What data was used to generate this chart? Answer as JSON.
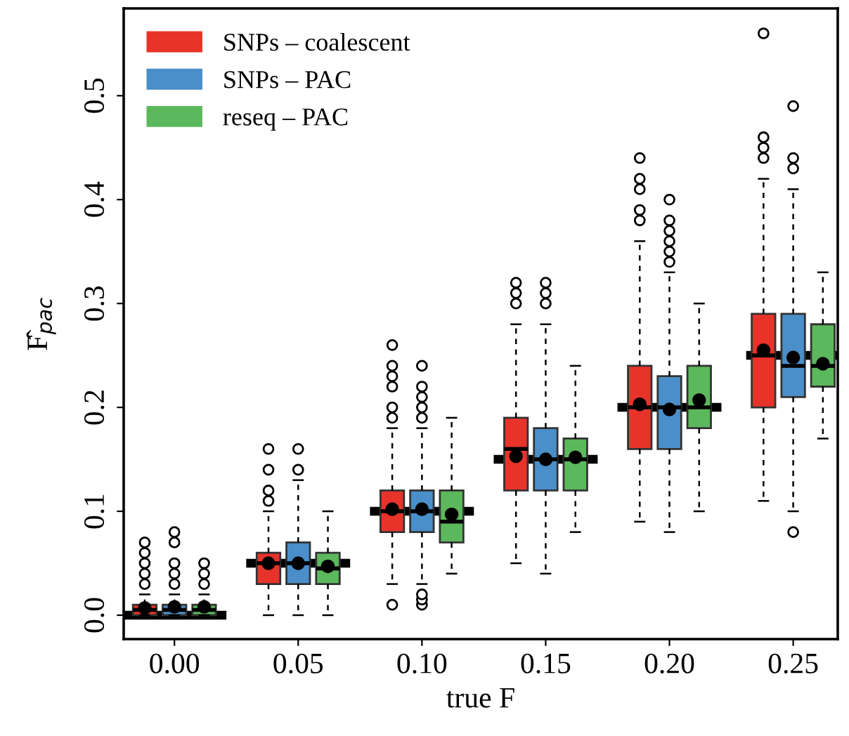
{
  "chart_data": {
    "type": "box",
    "xlabel": "true F",
    "ylabel": "F̂$_{pac}$",
    "x": [
      0,
      0.05,
      0.1,
      0.15,
      0.2,
      0.25
    ],
    "xlim": [
      -0.0205,
      0.268
    ],
    "xticks": [
      {
        "value": 0,
        "label": "0.00"
      },
      {
        "value": 0.05,
        "label": "0.05"
      },
      {
        "value": 0.1,
        "label": "0.10"
      },
      {
        "value": 0.15,
        "label": "0.15"
      },
      {
        "value": 0.2,
        "label": "0.20"
      },
      {
        "value": 0.25,
        "label": "0.25"
      }
    ],
    "ylim": [
      -0.023,
      0.584
    ],
    "yticks": [
      {
        "value": 0,
        "label": "0.0"
      },
      0.1,
      0.2,
      0.3,
      0.4,
      0.5
    ],
    "grid": false,
    "legend": "top left",
    "series": [
      {
        "name": "SNPs – coalescent",
        "color": "#e8332a",
        "boxes": [
          {
            "low": 0,
            "q1": 0,
            "median": 0.005,
            "q3": 0.01,
            "high": 0.02,
            "mean": 0.007,
            "outliers": [
              0.03,
              0.04,
              0.05,
              0.06,
              0.07
            ]
          },
          {
            "low": 0,
            "q1": 0.03,
            "median": 0.05,
            "q3": 0.06,
            "high": 0.1,
            "mean": 0.05,
            "outliers": [
              0.11,
              0.12,
              0.14,
              0.16
            ]
          },
          {
            "low": 0.03,
            "q1": 0.08,
            "median": 0.1,
            "q3": 0.12,
            "high": 0.18,
            "mean": 0.102,
            "outliers": [
              0.01,
              0.19,
              0.2,
              0.22,
              0.23,
              0.24,
              0.26
            ]
          },
          {
            "low": 0.05,
            "q1": 0.12,
            "median": 0.16,
            "q3": 0.19,
            "high": 0.28,
            "mean": 0.153,
            "outliers": [
              0.3,
              0.31,
              0.32
            ]
          },
          {
            "low": 0.09,
            "q1": 0.16,
            "median": 0.2,
            "q3": 0.24,
            "high": 0.36,
            "mean": 0.203,
            "outliers": [
              0.38,
              0.39,
              0.41,
              0.42,
              0.44
            ]
          },
          {
            "low": 0.11,
            "q1": 0.2,
            "median": 0.25,
            "q3": 0.29,
            "high": 0.42,
            "mean": 0.255,
            "outliers": [
              0.44,
              0.45,
              0.46,
              0.56
            ]
          }
        ]
      },
      {
        "name": "SNPs – PAC",
        "color": "#4a8fc9",
        "boxes": [
          {
            "low": 0,
            "q1": 0,
            "median": 0.005,
            "q3": 0.01,
            "high": 0.02,
            "mean": 0.008,
            "outliers": [
              0.03,
              0.04,
              0.05,
              0.07,
              0.08
            ]
          },
          {
            "low": 0,
            "q1": 0.03,
            "median": 0.05,
            "q3": 0.07,
            "high": 0.13,
            "mean": 0.05,
            "outliers": [
              0.14,
              0.16
            ]
          },
          {
            "low": 0.03,
            "q1": 0.08,
            "median": 0.1,
            "q3": 0.12,
            "high": 0.18,
            "mean": 0.102,
            "outliers": [
              0.01,
              0.015,
              0.02,
              0.19,
              0.2,
              0.21,
              0.22,
              0.24
            ]
          },
          {
            "low": 0.04,
            "q1": 0.12,
            "median": 0.15,
            "q3": 0.18,
            "high": 0.28,
            "mean": 0.15,
            "outliers": [
              0.3,
              0.31,
              0.32
            ]
          },
          {
            "low": 0.08,
            "q1": 0.16,
            "median": 0.2,
            "q3": 0.23,
            "high": 0.33,
            "mean": 0.198,
            "outliers": [
              0.34,
              0.35,
              0.36,
              0.37,
              0.38,
              0.4
            ]
          },
          {
            "low": 0.1,
            "q1": 0.21,
            "median": 0.24,
            "q3": 0.29,
            "high": 0.41,
            "mean": 0.248,
            "outliers": [
              0.08,
              0.43,
              0.44,
              0.49
            ]
          }
        ]
      },
      {
        "name": "reseq – PAC",
        "color": "#5cb85c",
        "boxes": [
          {
            "low": 0,
            "q1": 0,
            "median": 0.005,
            "q3": 0.01,
            "high": 0.02,
            "mean": 0.008,
            "outliers": [
              0.03,
              0.04,
              0.05
            ]
          },
          {
            "low": 0,
            "q1": 0.03,
            "median": 0.045,
            "q3": 0.06,
            "high": 0.1,
            "mean": 0.047
          },
          {
            "low": 0.04,
            "q1": 0.07,
            "median": 0.09,
            "q3": 0.12,
            "high": 0.19,
            "mean": 0.097
          },
          {
            "low": 0.08,
            "q1": 0.12,
            "median": 0.15,
            "q3": 0.17,
            "high": 0.24,
            "mean": 0.152
          },
          {
            "low": 0.1,
            "q1": 0.18,
            "median": 0.2,
            "q3": 0.24,
            "high": 0.3,
            "mean": 0.207
          },
          {
            "low": 0.17,
            "q1": 0.22,
            "median": 0.24,
            "q3": 0.28,
            "high": 0.33,
            "mean": 0.242
          }
        ]
      },
      {
        "type": "line",
        "color": "#000000",
        "x": [
          -0.0205,
          0.021
        ],
        "values": [
          0,
          0
        ]
      },
      {
        "type": "line",
        "color": "#000000",
        "x": [
          0.029,
          0.071
        ],
        "values": [
          0.05,
          0.05
        ]
      },
      {
        "type": "line",
        "color": "#000000",
        "x": [
          0.079,
          0.121
        ],
        "values": [
          0.1,
          0.1
        ]
      },
      {
        "type": "line",
        "color": "#000000",
        "x": [
          0.129,
          0.171
        ],
        "values": [
          0.15,
          0.15
        ]
      },
      {
        "type": "line",
        "color": "#000000",
        "x": [
          0.179,
          0.221
        ],
        "values": [
          0.2,
          0.2
        ]
      },
      {
        "type": "line",
        "color": "#000000",
        "x": [
          0.231,
          0.268
        ],
        "values": [
          0.25,
          0.25
        ]
      }
    ]
  }
}
